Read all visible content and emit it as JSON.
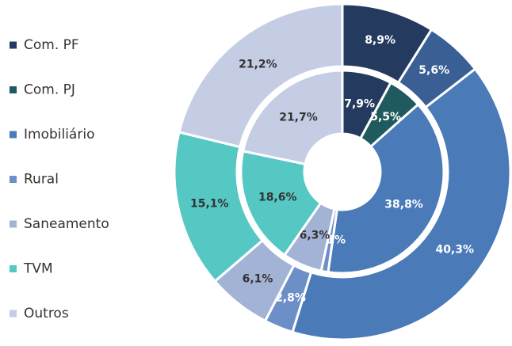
{
  "chart_data": {
    "type": "nested-donut",
    "categories": [
      "Com. PF",
      "Com. PJ",
      "Imobiliário",
      "Rural",
      "Saneamento",
      "TVM",
      "Outros"
    ],
    "series": [
      {
        "values": [
          8.9,
          5.6,
          40.3,
          2.8,
          6.1,
          15.1,
          21.2
        ],
        "value_labels": [
          "8,9%",
          "5,6%",
          "40,3%",
          "2,8%",
          "6,1%",
          "15,1%",
          "21,2%"
        ],
        "colors": [
          "#243a5e",
          "#3a5f94",
          "#4a7ab8",
          "#6d8fc8",
          "#a3b3d6",
          "#56c8c4",
          "#c4cde3"
        ]
      },
      {
        "values": [
          7.9,
          5.5,
          38.8,
          1.1,
          6.3,
          18.6,
          21.7
        ],
        "value_labels": [
          "7,9%",
          "5,5%",
          "38,8%",
          "1,1%",
          "6,3%",
          "18,6%",
          "21,7%"
        ],
        "colors": [
          "#243a5e",
          "#1e5a5e",
          "#4a7ab8",
          "#6d8fc8",
          "#a3b3d6",
          "#56c8c4",
          "#c4cde3"
        ]
      }
    ]
  }
}
